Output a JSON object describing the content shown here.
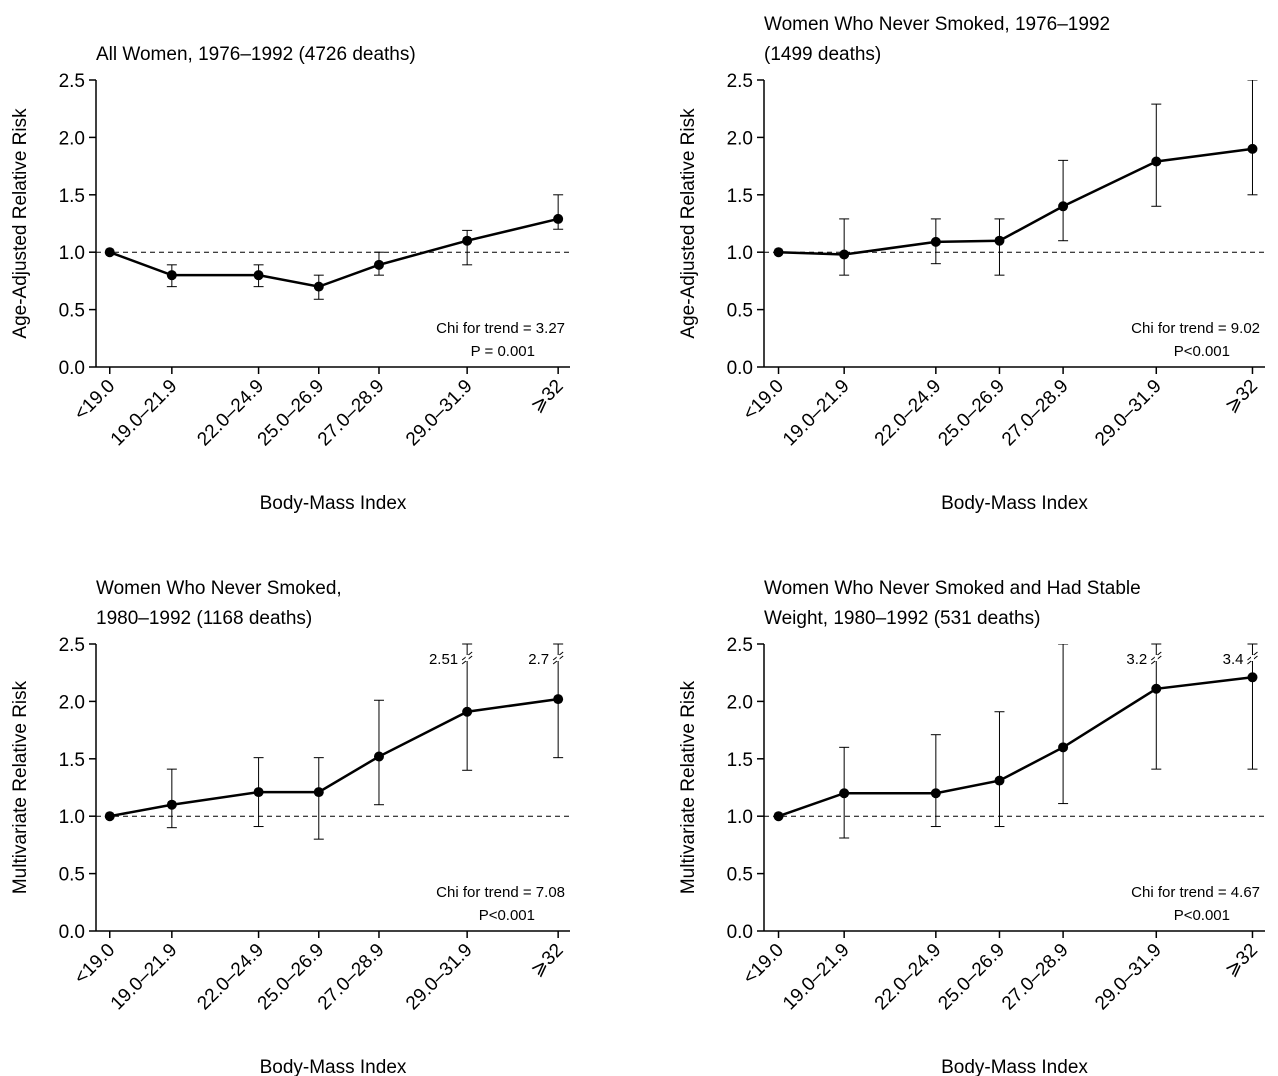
{
  "chart_data": [
    {
      "type": "line",
      "title": [
        "All Women, 1976–1992 (4726 deaths)"
      ],
      "ylabel": "Age-Adjusted Relative Risk",
      "xlabel": "Body-Mass Index",
      "categories": [
        "<19.0",
        "19.0–21.9",
        "22.0–24.9",
        "25.0–26.9",
        "27.0–28.9",
        "29.0–31.9",
        "⩾32"
      ],
      "values": [
        1.0,
        0.8,
        0.8,
        0.7,
        0.89,
        1.1,
        1.29
      ],
      "lower": [
        null,
        0.7,
        0.7,
        0.59,
        0.8,
        0.89,
        1.2
      ],
      "upper": [
        null,
        0.89,
        0.89,
        0.8,
        1.0,
        1.19,
        1.5
      ],
      "color": "#000000",
      "ylim": [
        0,
        2.5
      ],
      "yticks": [
        {
          "value": 0,
          "label": "0.0"
        },
        0.5,
        {
          "value": 1,
          "label": "1.0"
        },
        1.5,
        {
          "value": 2,
          "label": "2.0"
        },
        2.5
      ],
      "reference_line": 1,
      "annotations": [
        "Chi for trend = 3.27",
        "P = 0.001"
      ]
    },
    {
      "type": "line",
      "title": [
        "Women Who Never Smoked, 1976–1992",
        "(1499 deaths)"
      ],
      "ylabel": "Age-Adjusted Relative Risk",
      "xlabel": "Body-Mass Index",
      "categories": [
        "<19.0",
        "19.0–21.9",
        "22.0–24.9",
        "25.0–26.9",
        "27.0–28.9",
        "29.0–31.9",
        "⩾32"
      ],
      "values": [
        1.0,
        0.98,
        1.09,
        1.1,
        1.4,
        1.79,
        1.9
      ],
      "lower": [
        null,
        0.8,
        0.9,
        0.8,
        1.1,
        1.4,
        1.5
      ],
      "upper": [
        null,
        1.29,
        1.29,
        1.29,
        1.8,
        2.29,
        2.5
      ],
      "color": "#000000",
      "ylim": [
        0,
        2.5
      ],
      "yticks": [
        {
          "value": 0,
          "label": "0.0"
        },
        0.5,
        {
          "value": 1,
          "label": "1.0"
        },
        1.5,
        {
          "value": 2,
          "label": "2.0"
        },
        2.5
      ],
      "reference_line": 1,
      "annotations": [
        "Chi for trend = 9.02",
        "P<0.001"
      ]
    },
    {
      "type": "line",
      "title": [
        "Women Who Never Smoked,",
        "1980–1992 (1168 deaths)"
      ],
      "ylabel": "Multivariate Relative Risk",
      "xlabel": "Body-Mass Index",
      "categories": [
        "<19.0",
        "19.0–21.9",
        "22.0–24.9",
        "25.0–26.9",
        "27.0–28.9",
        "29.0–31.9",
        "⩾32"
      ],
      "values": [
        1.0,
        1.1,
        1.21,
        1.21,
        1.52,
        1.91,
        2.02
      ],
      "lower": [
        null,
        0.9,
        0.91,
        0.8,
        1.1,
        1.4,
        1.51
      ],
      "upper": [
        null,
        1.41,
        1.51,
        1.51,
        2.01,
        2.51,
        2.7
      ],
      "color": "#000000",
      "ylim": [
        0,
        2.5
      ],
      "yticks": [
        {
          "value": 0,
          "label": "0.0"
        },
        0.5,
        {
          "value": 1,
          "label": "1.0"
        },
        1.5,
        {
          "value": 2,
          "label": "2.0"
        },
        2.5
      ],
      "reference_line": 1,
      "annotations": [
        "Chi for trend = 7.08",
        "P<0.001"
      ]
    },
    {
      "type": "line",
      "title": [
        "Women Who Never Smoked and Had Stable",
        "Weight, 1980–1992 (531 deaths)"
      ],
      "ylabel": "Multivariate Relative Risk",
      "xlabel": "Body-Mass Index",
      "categories": [
        "<19.0",
        "19.0–21.9",
        "22.0–24.9",
        "25.0–26.9",
        "27.0–28.9",
        "29.0–31.9",
        "⩾32"
      ],
      "values": [
        1.0,
        1.2,
        1.2,
        1.31,
        1.6,
        2.11,
        2.21
      ],
      "lower": [
        null,
        0.81,
        0.91,
        0.91,
        1.11,
        1.41,
        1.41
      ],
      "upper": [
        null,
        1.6,
        1.71,
        1.91,
        2.5,
        3.2,
        3.4
      ],
      "color": "#000000",
      "ylim": [
        0,
        2.5
      ],
      "yticks": [
        {
          "value": 0,
          "label": "0.0"
        },
        0.5,
        {
          "value": 1,
          "label": "1.0"
        },
        1.5,
        {
          "value": 2,
          "label": "2.0"
        },
        2.5
      ],
      "reference_line": 1,
      "annotations": [
        "Chi for trend = 4.67",
        "P<0.001"
      ]
    }
  ]
}
